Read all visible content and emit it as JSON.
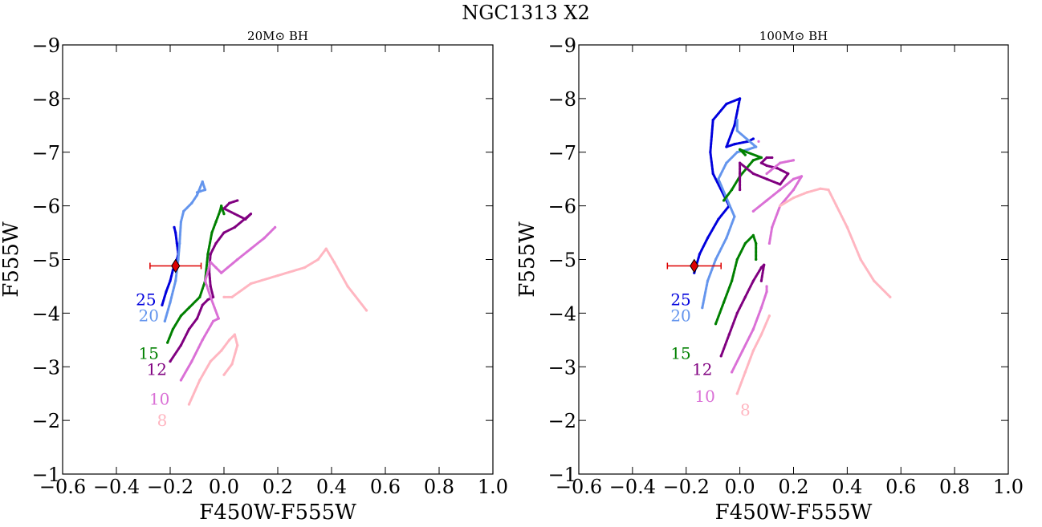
{
  "figure": {
    "suptitle": "NGC1313 X2",
    "colors": {
      "m25": "#0000dd",
      "m20": "#6495ed",
      "m15": "#008000",
      "m12": "#800080",
      "m10": "#da70d6",
      "m8": "#ffb6c1",
      "observed": "#dd0000"
    }
  },
  "chart_data": [
    {
      "type": "scatter",
      "title": "20M⊙ BH",
      "xlabel": "F450W-F555W",
      "ylabel": "F555W",
      "xlim": [
        -0.6,
        1.0
      ],
      "ylim": [
        -1,
        -9
      ],
      "y_inverted": true,
      "grid": false,
      "x_ticks": [
        "−0.6",
        "−0.4",
        "−0.2",
        "0.0",
        "0.2",
        "0.4",
        "0.6",
        "0.8",
        "1.0"
      ],
      "y_ticks": [
        "−9",
        "−8",
        "−7",
        "−6",
        "−5",
        "−4",
        "−3",
        "−2",
        "−1"
      ],
      "observed_point": {
        "x": -0.18,
        "y": -4.88,
        "xerr": [
          0.095,
          0.095
        ],
        "marker": "diamond"
      },
      "series": [
        {
          "name": "25",
          "color_key": "m25",
          "label_at": [
            -0.29,
            -4.25
          ],
          "points": [
            [
              -0.23,
              -4.15
            ],
            [
              -0.215,
              -4.4
            ],
            [
              -0.2,
              -4.6
            ],
            [
              -0.19,
              -4.8
            ],
            [
              -0.175,
              -5.0
            ],
            [
              -0.17,
              -5.1
            ],
            [
              -0.175,
              -5.3
            ],
            [
              -0.18,
              -5.5
            ],
            [
              -0.185,
              -5.6
            ]
          ]
        },
        {
          "name": "20",
          "color_key": "m20",
          "label_at": [
            -0.28,
            -3.95
          ],
          "points": [
            [
              -0.22,
              -3.85
            ],
            [
              -0.2,
              -4.2
            ],
            [
              -0.18,
              -4.6
            ],
            [
              -0.17,
              -5.0
            ],
            [
              -0.165,
              -5.3
            ],
            [
              -0.16,
              -5.7
            ],
            [
              -0.15,
              -5.9
            ],
            [
              -0.12,
              -6.05
            ],
            [
              -0.1,
              -6.2
            ],
            [
              -0.08,
              -6.45
            ],
            [
              -0.07,
              -6.3
            ],
            [
              -0.1,
              -6.25
            ]
          ]
        },
        {
          "name": "15",
          "color_key": "m15",
          "label_at": [
            -0.28,
            -3.25
          ],
          "points": [
            [
              -0.21,
              -3.45
            ],
            [
              -0.19,
              -3.7
            ],
            [
              -0.16,
              -3.95
            ],
            [
              -0.13,
              -4.1
            ],
            [
              -0.09,
              -4.3
            ],
            [
              -0.07,
              -4.6
            ],
            [
              -0.06,
              -5.1
            ],
            [
              -0.045,
              -5.5
            ],
            [
              -0.03,
              -5.7
            ],
            [
              -0.015,
              -5.9
            ],
            [
              -0.01,
              -6.0
            ],
            [
              0.0,
              -5.85
            ]
          ]
        },
        {
          "name": "12",
          "color_key": "m12",
          "label_at": [
            -0.25,
            -2.95
          ],
          "points": [
            [
              -0.2,
              -3.1
            ],
            [
              -0.16,
              -3.4
            ],
            [
              -0.13,
              -3.7
            ],
            [
              -0.1,
              -3.9
            ],
            [
              -0.08,
              -4.15
            ],
            [
              -0.06,
              -4.25
            ],
            [
              -0.04,
              -4.3
            ],
            [
              -0.05,
              -4.5
            ],
            [
              -0.055,
              -4.8
            ],
            [
              -0.05,
              -5.1
            ],
            [
              -0.03,
              -5.3
            ],
            [
              0.0,
              -5.5
            ],
            [
              0.04,
              -5.6
            ],
            [
              0.1,
              -5.85
            ],
            [
              0.08,
              -5.75
            ],
            [
              0.0,
              -5.95
            ],
            [
              0.02,
              -6.05
            ],
            [
              0.05,
              -6.1
            ]
          ]
        },
        {
          "name": "10",
          "color_key": "m10",
          "label_at": [
            -0.24,
            -2.4
          ],
          "points": [
            [
              -0.16,
              -2.75
            ],
            [
              -0.12,
              -3.1
            ],
            [
              -0.08,
              -3.5
            ],
            [
              -0.04,
              -3.85
            ],
            [
              -0.02,
              -3.9
            ],
            [
              -0.05,
              -4.3
            ],
            [
              -0.07,
              -4.6
            ],
            [
              -0.05,
              -4.95
            ],
            [
              -0.03,
              -4.85
            ],
            [
              -0.01,
              -4.75
            ],
            [
              0.05,
              -5.0
            ],
            [
              0.1,
              -5.2
            ],
            [
              0.15,
              -5.4
            ],
            [
              0.19,
              -5.6
            ]
          ]
        },
        {
          "name": "8",
          "color_key": "m8",
          "label_at": [
            -0.23,
            -2.0
          ],
          "points": [
            [
              -0.13,
              -2.3
            ],
            [
              -0.09,
              -2.75
            ],
            [
              -0.05,
              -3.1
            ],
            [
              -0.01,
              -3.3
            ],
            [
              0.02,
              -3.5
            ],
            [
              0.04,
              -3.6
            ],
            [
              0.05,
              -3.4
            ],
            [
              0.03,
              -3.05
            ],
            [
              0.0,
              -2.85
            ],
            [
              0.0,
              -4.3
            ],
            [
              0.03,
              -4.3
            ],
            [
              0.1,
              -4.55
            ],
            [
              0.2,
              -4.7
            ],
            [
              0.3,
              -4.85
            ],
            [
              0.35,
              -5.0
            ],
            [
              0.38,
              -5.2
            ],
            [
              0.41,
              -4.95
            ],
            [
              0.46,
              -4.5
            ],
            [
              0.53,
              -4.05
            ]
          ]
        }
      ]
    },
    {
      "type": "scatter",
      "title": "100M⊙ BH",
      "xlabel": "F450W-F555W",
      "ylabel": "F555W",
      "xlim": [
        -0.6,
        1.0
      ],
      "ylim": [
        -1,
        -9
      ],
      "y_inverted": true,
      "grid": false,
      "x_ticks": [
        "−0.6",
        "−0.4",
        "−0.2",
        "0.0",
        "0.2",
        "0.4",
        "0.6",
        "0.8",
        "1.0"
      ],
      "y_ticks": [
        "−9",
        "−8",
        "−7",
        "−6",
        "−5",
        "−4",
        "−3",
        "−2",
        "−1"
      ],
      "observed_point": {
        "x": -0.17,
        "y": -4.88,
        "xerr": [
          0.1,
          0.1
        ],
        "marker": "diamond"
      },
      "series": [
        {
          "name": "25",
          "color_key": "m25",
          "label_at": [
            -0.22,
            -4.25
          ],
          "points": [
            [
              -0.17,
              -4.75
            ],
            [
              -0.15,
              -5.1
            ],
            [
              -0.12,
              -5.4
            ],
            [
              -0.08,
              -5.75
            ],
            [
              -0.04,
              -6.0
            ],
            [
              -0.1,
              -6.6
            ],
            [
              -0.11,
              -7.0
            ],
            [
              -0.1,
              -7.6
            ],
            [
              -0.05,
              -7.9
            ],
            [
              0.0,
              -8.0
            ],
            [
              -0.02,
              -7.5
            ],
            [
              -0.05,
              -7.1
            ],
            [
              -0.02,
              -7.15
            ],
            [
              0.03,
              -7.2
            ],
            [
              0.05,
              -7.25
            ]
          ]
        },
        {
          "name": "20",
          "color_key": "m20",
          "label_at": [
            -0.22,
            -3.95
          ],
          "points": [
            [
              -0.14,
              -4.1
            ],
            [
              -0.12,
              -4.6
            ],
            [
              -0.09,
              -5.0
            ],
            [
              -0.05,
              -5.4
            ],
            [
              -0.02,
              -5.8
            ],
            [
              -0.08,
              -6.5
            ],
            [
              -0.05,
              -6.8
            ],
            [
              -0.01,
              -7.0
            ],
            [
              0.03,
              -7.05
            ],
            [
              0.06,
              -7.1
            ],
            [
              -0.01,
              -7.4
            ],
            [
              -0.01,
              -7.6
            ]
          ]
        },
        {
          "name": "15",
          "color_key": "m15",
          "label_at": [
            -0.22,
            -3.25
          ],
          "points": [
            [
              -0.09,
              -3.8
            ],
            [
              -0.06,
              -4.2
            ],
            [
              -0.03,
              -4.6
            ],
            [
              -0.01,
              -5.0
            ],
            [
              0.02,
              -5.3
            ],
            [
              0.05,
              -5.45
            ],
            [
              0.06,
              -5.3
            ],
            [
              0.06,
              -5.0
            ],
            [
              -0.06,
              -6.1
            ],
            [
              -0.03,
              -6.3
            ],
            [
              0.0,
              -6.55
            ],
            [
              0.05,
              -6.85
            ],
            [
              0.08,
              -6.9
            ],
            [
              0.0,
              -7.05
            ],
            [
              0.02,
              -6.95
            ]
          ]
        },
        {
          "name": "12",
          "color_key": "m12",
          "label_at": [
            -0.14,
            -2.95
          ],
          "points": [
            [
              -0.07,
              -3.2
            ],
            [
              -0.04,
              -3.6
            ],
            [
              -0.01,
              -4.0
            ],
            [
              0.02,
              -4.3
            ],
            [
              0.05,
              -4.6
            ],
            [
              0.08,
              -4.85
            ],
            [
              0.09,
              -4.9
            ],
            [
              0.08,
              -4.6
            ],
            [
              0.0,
              -6.3
            ],
            [
              0.0,
              -6.6
            ],
            [
              0.0,
              -6.8
            ],
            [
              0.05,
              -6.6
            ],
            [
              0.1,
              -6.5
            ],
            [
              0.15,
              -6.4
            ],
            [
              0.18,
              -6.6
            ],
            [
              0.14,
              -6.7
            ],
            [
              0.1,
              -6.75
            ],
            [
              0.08,
              -6.8
            ],
            [
              0.1,
              -6.9
            ],
            [
              0.12,
              -6.9
            ]
          ]
        },
        {
          "name": "10",
          "color_key": "m10",
          "label_at": [
            -0.13,
            -2.45
          ],
          "points": [
            [
              -0.03,
              -2.9
            ],
            [
              0.01,
              -3.3
            ],
            [
              0.05,
              -3.7
            ],
            [
              0.08,
              -4.1
            ],
            [
              0.1,
              -4.4
            ],
            [
              0.1,
              -4.5
            ],
            [
              0.05,
              -5.9
            ],
            [
              0.1,
              -6.1
            ],
            [
              0.15,
              -6.3
            ],
            [
              0.2,
              -6.5
            ],
            [
              0.23,
              -6.55
            ],
            [
              0.2,
              -6.3
            ],
            [
              0.15,
              -6.0
            ],
            [
              0.12,
              -5.6
            ],
            [
              0.11,
              -5.3
            ],
            [
              0.1,
              -6.6
            ],
            [
              0.15,
              -6.8
            ],
            [
              0.2,
              -6.85
            ],
            [
              0.07,
              -7.2
            ]
          ]
        },
        {
          "name": "8",
          "color_key": "m8",
          "label_at": [
            0.02,
            -2.2
          ],
          "points": [
            [
              -0.01,
              -2.5
            ],
            [
              0.02,
              -2.9
            ],
            [
              0.05,
              -3.3
            ],
            [
              0.08,
              -3.6
            ],
            [
              0.11,
              -3.95
            ],
            [
              0.15,
              -6.0
            ],
            [
              0.2,
              -6.15
            ],
            [
              0.25,
              -6.25
            ],
            [
              0.3,
              -6.32
            ],
            [
              0.33,
              -6.3
            ],
            [
              0.36,
              -6.0
            ],
            [
              0.4,
              -5.6
            ],
            [
              0.45,
              -5.0
            ],
            [
              0.5,
              -4.6
            ],
            [
              0.56,
              -4.3
            ]
          ]
        }
      ]
    }
  ]
}
